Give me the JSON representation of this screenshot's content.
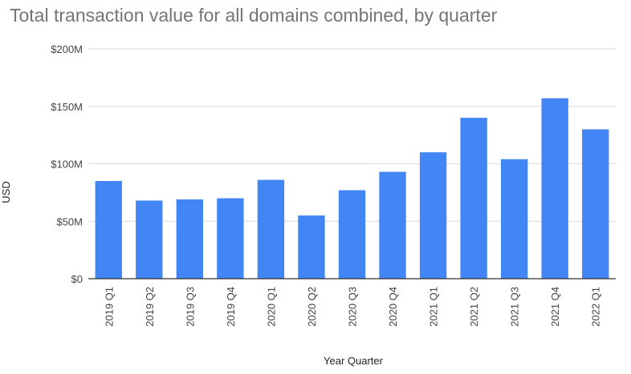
{
  "chart_data": {
    "type": "bar",
    "title": "Total transaction value for all domains combined, by quarter",
    "xlabel": "Year Quarter",
    "ylabel": "USD",
    "categories": [
      "2019 Q1",
      "2019 Q2",
      "2019 Q3",
      "2019 Q4",
      "2020 Q1",
      "2020 Q2",
      "2020 Q3",
      "2020 Q4",
      "2021 Q1",
      "2021 Q2",
      "2021 Q3",
      "2021 Q4",
      "2022 Q1"
    ],
    "values": [
      85,
      68,
      69,
      70,
      86,
      55,
      77,
      93,
      110,
      140,
      104,
      157,
      130
    ],
    "value_unit": "millions USD",
    "ylim": [
      0,
      200
    ],
    "yticks": [
      0,
      50,
      100,
      150,
      200
    ],
    "ytick_labels": [
      "$0",
      "$50M",
      "$100M",
      "$150M",
      "$200M"
    ],
    "grid": true,
    "legend": "none",
    "bar_color": "#4285f4",
    "grid_color": "#d9d9d9",
    "axis_color": "#333333"
  }
}
